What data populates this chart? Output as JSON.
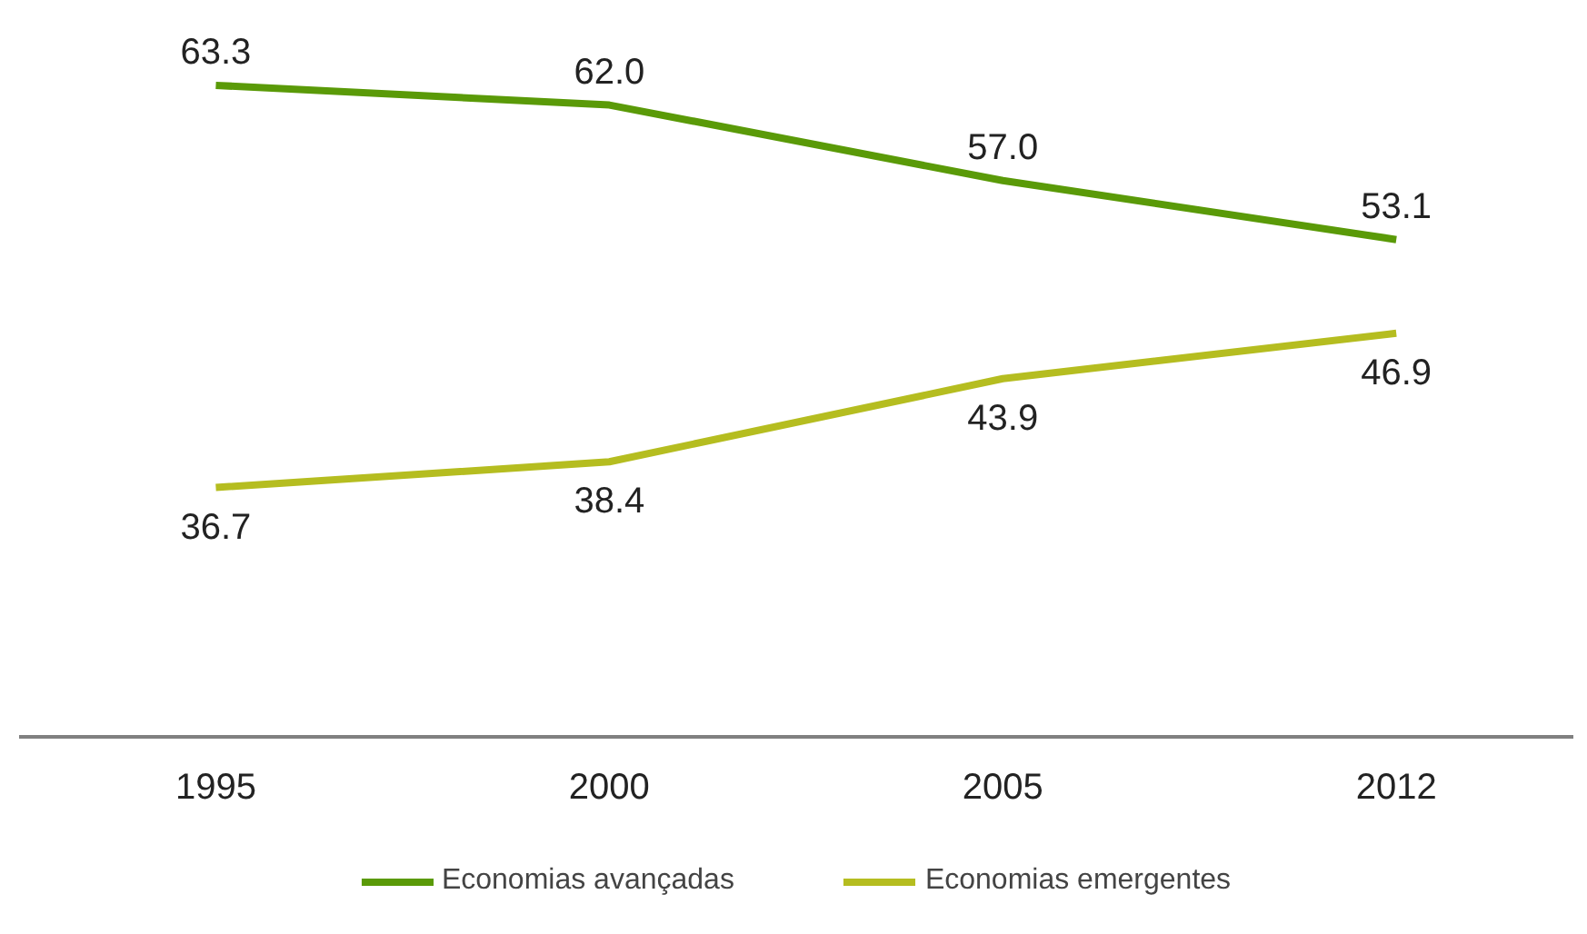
{
  "chart_data": {
    "type": "line",
    "categories": [
      "1995",
      "2000",
      "2005",
      "2012"
    ],
    "series": [
      {
        "name": "Economias avançadas",
        "color": "#5a9a08",
        "values": [
          63.3,
          62.0,
          57.0,
          53.1
        ],
        "value_labels": [
          "63.3",
          "62.0",
          "57.0",
          "53.1"
        ]
      },
      {
        "name": "Economias emergentes",
        "color": "#b5bd20",
        "values": [
          36.7,
          38.4,
          43.9,
          46.9
        ],
        "value_labels": [
          "36.7",
          "38.4",
          "43.9",
          "46.9"
        ]
      }
    ],
    "legend": "bottom",
    "marker": "none",
    "line_style": "solid"
  }
}
